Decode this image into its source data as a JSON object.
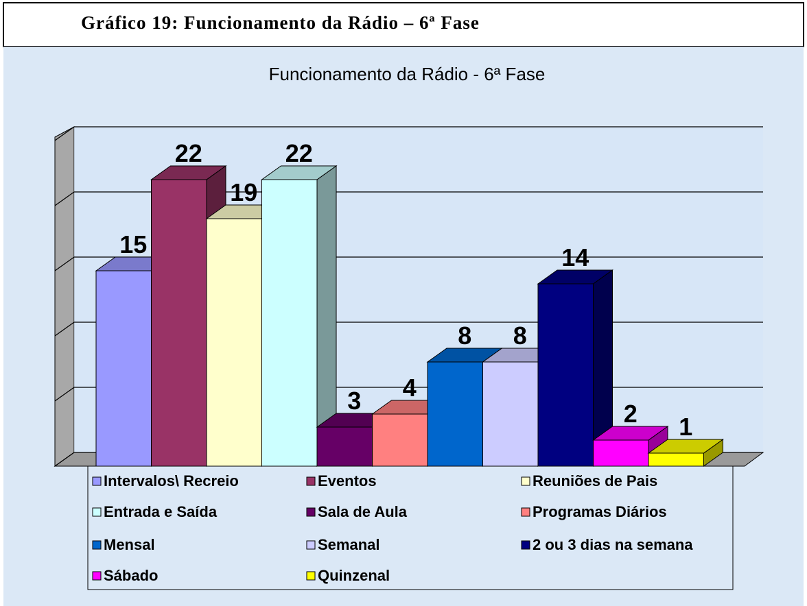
{
  "header": {
    "title": "Gráfico 19: Funcionamento da Rádio – 6ª Fase"
  },
  "chart_data": {
    "type": "bar3d",
    "title": "Funcionamento da Rádio - 6ª Fase",
    "categories": [
      "Intervalos\\ Recreio",
      "Eventos",
      "Reuniões de Pais",
      "Entrada e Saída",
      "Sala de Aula",
      "Programas Diários",
      "Mensal",
      "Semanal",
      "2 ou 3 dias na semana",
      "Sábado",
      "Quinzenal"
    ],
    "values": [
      15,
      22,
      19,
      22,
      3,
      4,
      8,
      8,
      14,
      2,
      1
    ],
    "colors": [
      "#9999ff",
      "#993366",
      "#ffffcc",
      "#ccffff",
      "#660066",
      "#ff8080",
      "#0066cc",
      "#ccccff",
      "#000080",
      "#ff00ff",
      "#ffff00"
    ],
    "ylim": [
      0,
      25
    ],
    "yticks": [
      0,
      5,
      10,
      15,
      20,
      25
    ],
    "grid": true
  }
}
